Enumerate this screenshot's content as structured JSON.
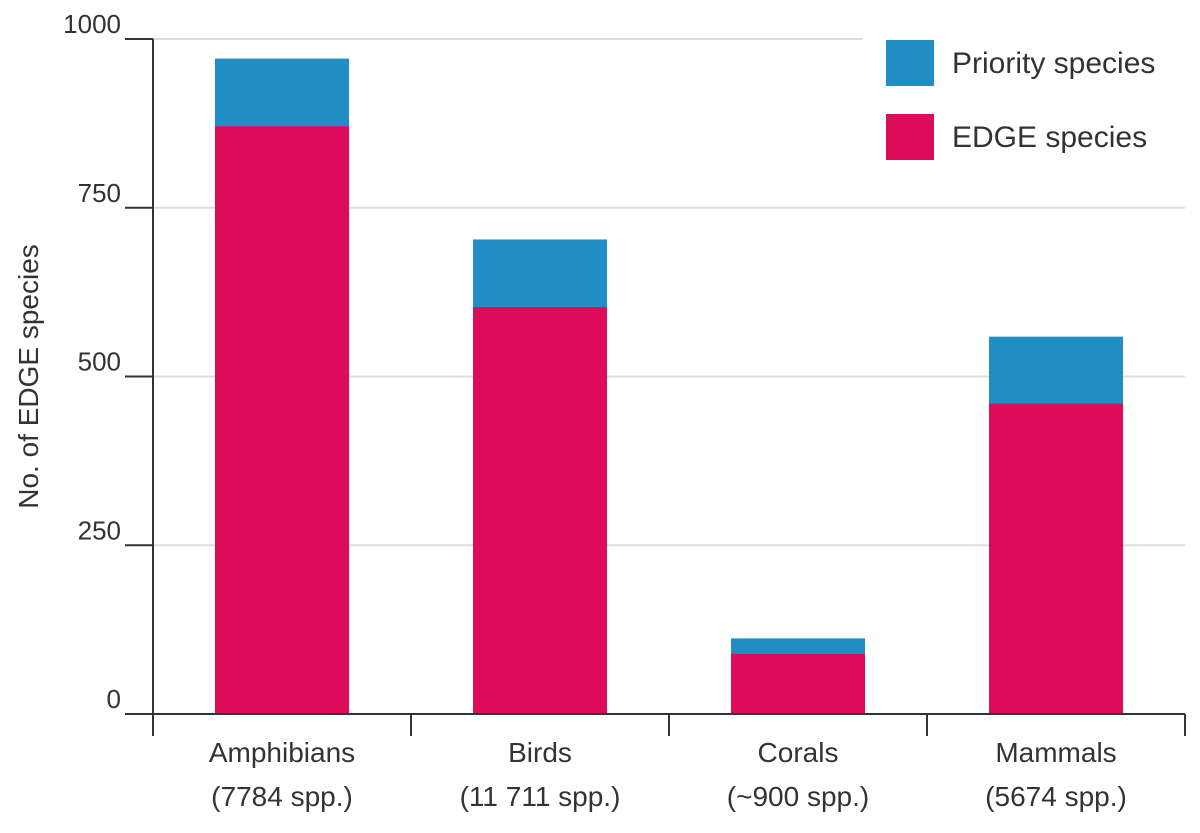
{
  "chart_data": {
    "type": "bar",
    "stacked": true,
    "title": "",
    "xlabel": "",
    "ylabel": "No. of EDGE species",
    "ylim": [
      0,
      1000
    ],
    "yticks": [
      0,
      250,
      500,
      750,
      1000
    ],
    "grid": true,
    "legend_position": "top-right",
    "categories": [
      {
        "name": "Amphibians",
        "sub": "(7784 spp.)"
      },
      {
        "name": "Birds",
        "sub": "(11 711 spp.)"
      },
      {
        "name": "Corals",
        "sub": "(~900 spp.)"
      },
      {
        "name": "Mammals",
        "sub": "(5674 spp.)"
      }
    ],
    "series": [
      {
        "name": "EDGE species",
        "color": "#DC0C5A",
        "values": [
          871,
          603,
          90,
          460
        ]
      },
      {
        "name": "Priority species",
        "color": "#218DC5",
        "values": [
          100,
          100,
          22,
          99
        ]
      }
    ],
    "legend_order": [
      "Priority species",
      "EDGE species"
    ]
  }
}
